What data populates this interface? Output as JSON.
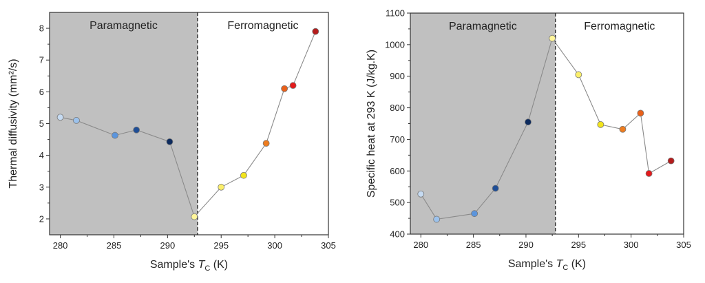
{
  "chart_data": [
    {
      "type": "line",
      "ylabel": "Thermal diffusivity (mm²/s)",
      "xlabel_prefix": "Sample's ",
      "xlabel_var": "T",
      "xlabel_sub": "C",
      "xlabel_suffix": " (K)",
      "xlim": [
        279,
        305
      ],
      "ylim": [
        1.5,
        8.5
      ],
      "xticks": [
        280,
        285,
        290,
        295,
        300,
        305
      ],
      "yticks": [
        2,
        3,
        4,
        5,
        6,
        7,
        8
      ],
      "divider_x": 292.8,
      "regions": {
        "left": "Paramagnetic",
        "right": "Ferromagnetic"
      },
      "x": [
        280,
        281.5,
        285.1,
        287.1,
        290.2,
        292.5,
        295,
        297.1,
        299.2,
        300.9,
        301.7,
        303.8
      ],
      "y": [
        5.2,
        5.1,
        4.63,
        4.8,
        4.43,
        2.07,
        3.0,
        3.37,
        4.38,
        6.1,
        6.2,
        7.9
      ]
    },
    {
      "type": "line",
      "ylabel": "Specific heat at 293 K (J/kg.K)",
      "xlabel_prefix": "Sample's ",
      "xlabel_var": "T",
      "xlabel_sub": "C",
      "xlabel_suffix": " (K)",
      "xlim": [
        279,
        305
      ],
      "ylim": [
        400,
        1100
      ],
      "xticks": [
        280,
        285,
        290,
        295,
        300,
        305
      ],
      "yticks": [
        400,
        500,
        600,
        700,
        800,
        900,
        1000,
        1100
      ],
      "divider_x": 292.8,
      "regions": {
        "left": "Paramagnetic",
        "right": "Ferromagnetic"
      },
      "x": [
        280,
        281.5,
        285.1,
        287.1,
        290.2,
        292.5,
        295,
        297.1,
        299.2,
        300.9,
        301.7,
        303.8
      ],
      "y": [
        527,
        447,
        465,
        545,
        755,
        1020,
        905,
        747,
        732,
        783,
        592,
        632
      ]
    }
  ],
  "colors": {
    "shade": "#c0c0c0",
    "line": "#8a8a8a",
    "points": [
      "#c6dbf2",
      "#9cc2ec",
      "#5b95dd",
      "#1f4e96",
      "#0d2b5e",
      "#fff59a",
      "#fbef6a",
      "#f2e41c",
      "#ee7d1f",
      "#e8601a",
      "#e41a1c",
      "#b51c1c"
    ]
  }
}
